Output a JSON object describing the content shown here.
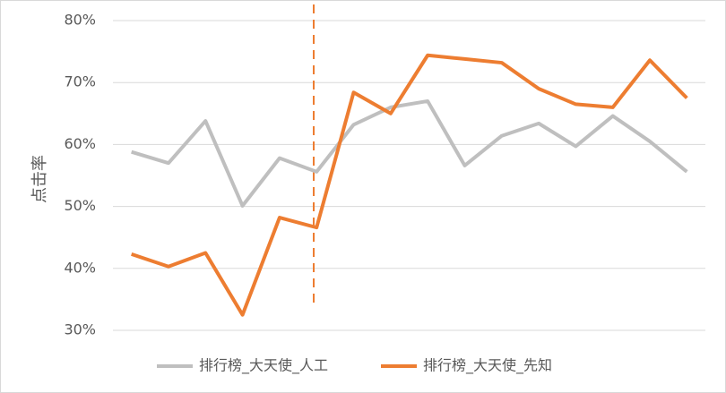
{
  "chart_data": {
    "type": "line",
    "y_label": "点击率",
    "categories": [
      null,
      null,
      null,
      null,
      null,
      null,
      null,
      null,
      null,
      null,
      null,
      null,
      null,
      null,
      null,
      null
    ],
    "series": [
      {
        "name": "排行榜_大天使_人工",
        "color": "#bfbfbf",
        "values": [
          58.8,
          57,
          63.8,
          50.1,
          57.8,
          55.6,
          63.2,
          66,
          67,
          56.6,
          61.4,
          63.4,
          59.7,
          64.6,
          60.5,
          55.6
        ]
      },
      {
        "name": "排行榜_大天使_先知",
        "color": "#ed7d31",
        "values": [
          42.3,
          40.3,
          42.5,
          32.5,
          48.2,
          46.6,
          68.4,
          65,
          74.4,
          73.8,
          73.2,
          69,
          66.5,
          66,
          73.6,
          67.5
        ]
      }
    ],
    "ylim": [
      30,
      80
    ],
    "yticks": [
      {
        "value": 30,
        "label": "30%"
      },
      {
        "value": 40,
        "label": "40%"
      },
      {
        "value": 50,
        "label": "50%"
      },
      {
        "value": 60,
        "label": "60%"
      },
      {
        "value": 70,
        "label": "70%"
      },
      {
        "value": 80,
        "label": "80%"
      }
    ],
    "grid": true,
    "legend": "bottom"
  }
}
